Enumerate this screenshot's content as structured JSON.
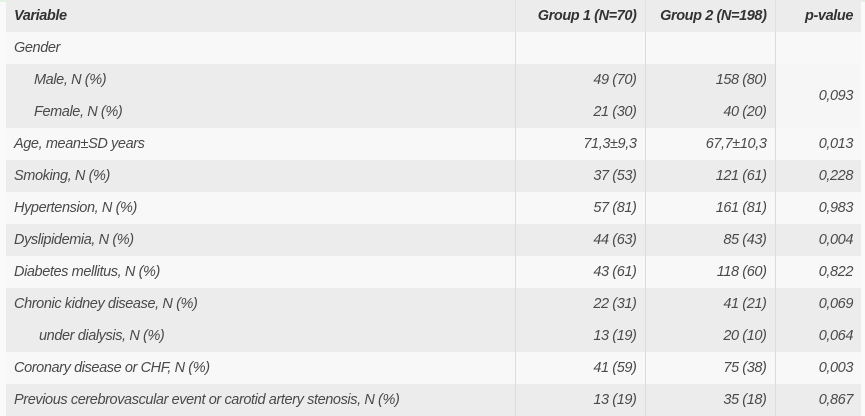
{
  "header": {
    "variable": "Variable",
    "group1": "Group 1 (N=70)",
    "group2": "Group 2 (N=198)",
    "pvalue": "p-value"
  },
  "gender": {
    "label": "Gender",
    "male": {
      "label": "Male, N (%)",
      "g1": "49 (70)",
      "g2": "158 (80)"
    },
    "female": {
      "label": "Female, N (%)",
      "g1": "21 (30)",
      "g2": "40 (20)"
    },
    "p": "0,093"
  },
  "rows": [
    {
      "label": "Age, mean±SD years",
      "g1": "71,3±9,3",
      "g2": "67,7±10,3",
      "p": "0,013"
    },
    {
      "label": "Smoking, N (%)",
      "g1": "37 (53)",
      "g2": "121 (61)",
      "p": "0,228"
    },
    {
      "label": "Hypertension, N (%)",
      "g1": "57 (81)",
      "g2": "161 (81)",
      "p": "0,983"
    },
    {
      "label": "Dyslipidemia, N (%)",
      "g1": "44 (63)",
      "g2": "85 (43)",
      "p": "0,004"
    },
    {
      "label": "Diabetes mellitus, N (%)",
      "g1": "43 (61)",
      "g2": "118 (60)",
      "p": "0,822"
    },
    {
      "label": "Chronic kidney disease, N (%)",
      "g1": "22 (31)",
      "g2": "41 (21)",
      "p": "0,069"
    },
    {
      "label": "under dialysis, N (%)",
      "g1": "13 (19)",
      "g2": "20 (10)",
      "p": "0,064"
    },
    {
      "label": "Coronary disease or CHF, N (%)",
      "g1": "41 (59)",
      "g2": "75 (38)",
      "p": "0,003"
    },
    {
      "label": "Previous cerebrovascular event or carotid artery stenosis, N (%)",
      "g1": "13 (19)",
      "g2": "35 (18)",
      "p": "0,867"
    }
  ]
}
